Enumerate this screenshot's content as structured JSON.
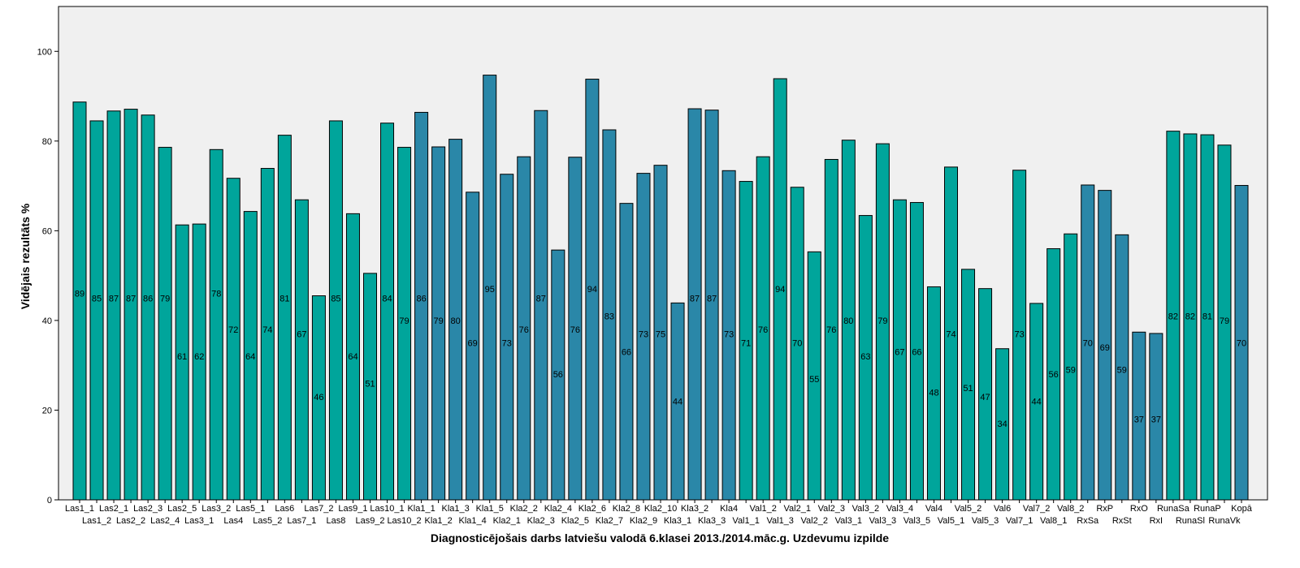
{
  "chart_data": {
    "type": "bar",
    "title": "",
    "xlabel": "Diagnosticējošais darbs latviešu valodā 6.klasei 2013./2014.māc.g. Uzdevumu izpilde",
    "ylabel": "Vidējais rezultāts %",
    "ylim": [
      0,
      110
    ],
    "yticks": [
      0,
      20,
      40,
      60,
      80,
      100
    ],
    "grid": false,
    "legend": "none",
    "colors": {
      "teal": "#00a59b",
      "blue": "#2a87a8",
      "plot_bg": "#f0f0f0",
      "border": "#000000"
    },
    "categories": [
      "Las1_1",
      "Las1_2",
      "Las2_1",
      "Las2_2",
      "Las2_3",
      "Las2_4",
      "Las2_5",
      "Las3_1",
      "Las3_2",
      "Las4",
      "Las5_1",
      "Las5_2",
      "Las6",
      "Las7_1",
      "Las7_2",
      "Las8",
      "Las9_1",
      "Las9_2",
      "Las10_1",
      "Las10_2",
      "Kla1_1",
      "Kla1_2",
      "Kla1_3",
      "Kla1_4",
      "Kla1_5",
      "Kla2_1",
      "Kla2_2",
      "Kla2_3",
      "Kla2_4",
      "Kla2_5",
      "Kla2_6",
      "Kla2_7",
      "Kla2_8",
      "Kla2_9",
      "Kla2_10",
      "Kla3_1",
      "Kla3_2",
      "Kla3_3",
      "Kla4",
      "Val1_1",
      "Val1_2",
      "Val1_3",
      "Val2_1",
      "Val2_2",
      "Val2_3",
      "Val3_1",
      "Val3_2",
      "Val3_3",
      "Val3_4",
      "Val3_5",
      "Val4",
      "Val5_1",
      "Val5_2",
      "Val5_3",
      "Val6",
      "Val7_1",
      "Val7_2",
      "Val8_1",
      "Val8_2",
      "RxSa",
      "RxP",
      "RxSt",
      "RxO",
      "RxI",
      "RunaSa",
      "RunaSl",
      "RunaP",
      "RunaVk",
      "Kopā"
    ],
    "values": [
      88.7,
      84.5,
      86.7,
      87.1,
      85.8,
      78.6,
      61.3,
      61.5,
      78.1,
      71.7,
      64.3,
      73.9,
      81.3,
      66.9,
      45.5,
      84.5,
      63.8,
      50.5,
      84.0,
      78.6,
      86.4,
      78.7,
      80.4,
      68.6,
      94.7,
      72.6,
      76.5,
      86.8,
      55.7,
      76.4,
      93.8,
      82.5,
      66.1,
      72.8,
      74.6,
      43.9,
      87.2,
      86.9,
      73.4,
      71.0,
      76.5,
      93.9,
      69.7,
      55.3,
      75.9,
      80.2,
      63.4,
      79.4,
      66.9,
      66.3,
      47.5,
      74.2,
      51.4,
      47.1,
      33.7,
      73.5,
      43.8,
      56.0,
      59.3,
      70.2,
      69.0,
      59.1,
      37.4,
      37.1,
      82.2,
      81.6,
      81.4,
      79.1,
      70.1
    ],
    "data_labels": [
      "89",
      "85",
      "87",
      "87",
      "86",
      "79",
      "61",
      "62",
      "78",
      "72",
      "64",
      "74",
      "81",
      "67",
      "46",
      "85",
      "64",
      "51",
      "84",
      "79",
      "86",
      "79",
      "80",
      "69",
      "95",
      "73",
      "76",
      "87",
      "56",
      "76",
      "94",
      "83",
      "66",
      "73",
      "75",
      "44",
      "87",
      "87",
      "73",
      "71",
      "76",
      "94",
      "70",
      "55",
      "76",
      "80",
      "63",
      "79",
      "67",
      "66",
      "48",
      "74",
      "51",
      "47",
      "34",
      "73",
      "44",
      "56",
      "59",
      "70",
      "69",
      "59",
      "37",
      "37",
      "82",
      "82",
      "81",
      "79",
      "70"
    ],
    "label_y": [
      46,
      45,
      45,
      45,
      45,
      45,
      32,
      32,
      46,
      38,
      32,
      38,
      45,
      37,
      23,
      45,
      32,
      26,
      45,
      40,
      45,
      40,
      40,
      35,
      47,
      35,
      38,
      45,
      28,
      38,
      47,
      41,
      33,
      37,
      37,
      22,
      45,
      45,
      37,
      35,
      38,
      47,
      35,
      27,
      38,
      40,
      32,
      40,
      33,
      33,
      24,
      37,
      25,
      23,
      17,
      37,
      22,
      28,
      29,
      35,
      34,
      29,
      18,
      18,
      41,
      41,
      41,
      40,
      35
    ],
    "color_group": [
      "teal",
      "teal",
      "teal",
      "teal",
      "teal",
      "teal",
      "teal",
      "teal",
      "teal",
      "teal",
      "teal",
      "teal",
      "teal",
      "teal",
      "teal",
      "teal",
      "teal",
      "teal",
      "teal",
      "teal",
      "blue",
      "blue",
      "blue",
      "blue",
      "blue",
      "blue",
      "blue",
      "blue",
      "blue",
      "blue",
      "blue",
      "blue",
      "blue",
      "blue",
      "blue",
      "blue",
      "blue",
      "blue",
      "blue",
      "teal",
      "teal",
      "teal",
      "teal",
      "teal",
      "teal",
      "teal",
      "teal",
      "teal",
      "teal",
      "teal",
      "teal",
      "teal",
      "teal",
      "teal",
      "teal",
      "teal",
      "teal",
      "teal",
      "teal",
      "blue",
      "blue",
      "blue",
      "blue",
      "blue",
      "teal",
      "teal",
      "teal",
      "teal",
      "blue"
    ]
  }
}
